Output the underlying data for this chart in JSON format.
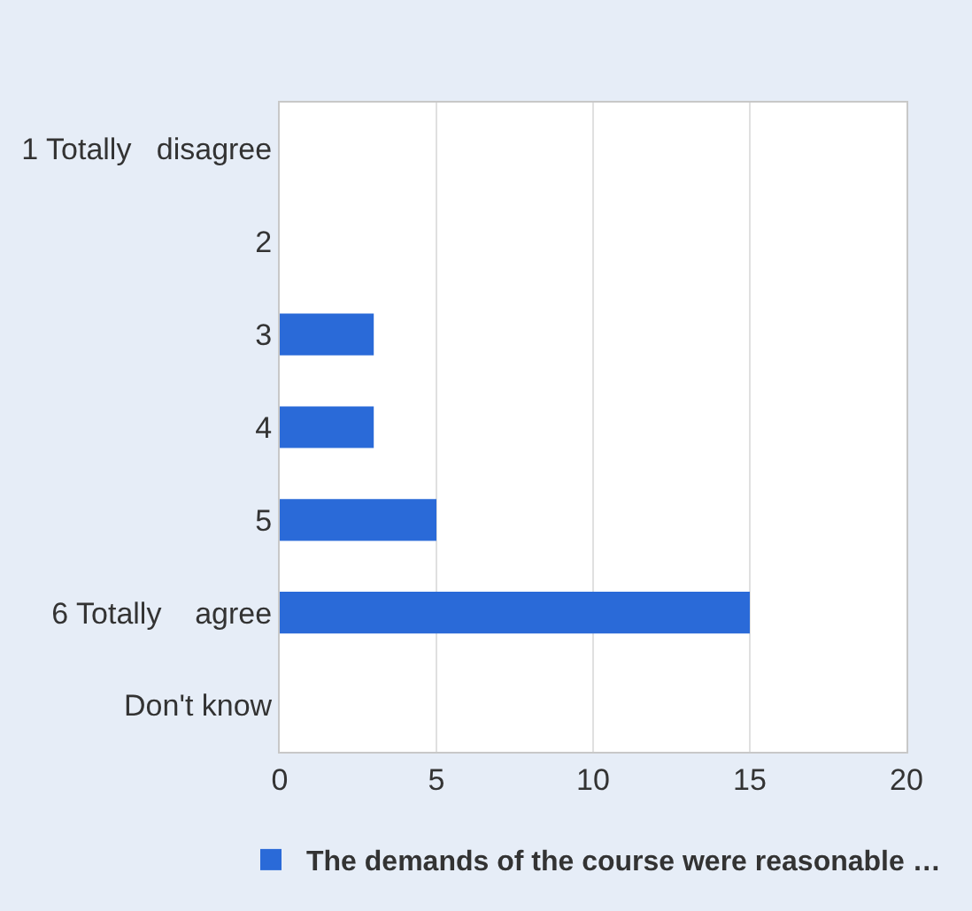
{
  "chart_data": {
    "type": "bar",
    "orientation": "horizontal",
    "categories": [
      "1 Totally   disagree",
      "2",
      "3",
      "4",
      "5",
      "6 Totally    agree",
      "Don't know"
    ],
    "series": [
      {
        "name": "The demands of the course were reasonable …",
        "color": "#2a6ad8",
        "values": [
          0,
          0,
          3,
          3,
          5,
          15,
          0
        ]
      }
    ],
    "xlim": [
      0,
      20
    ],
    "xticks": [
      0,
      5,
      10,
      15,
      20
    ],
    "grid": "x",
    "legend": "bottom"
  }
}
